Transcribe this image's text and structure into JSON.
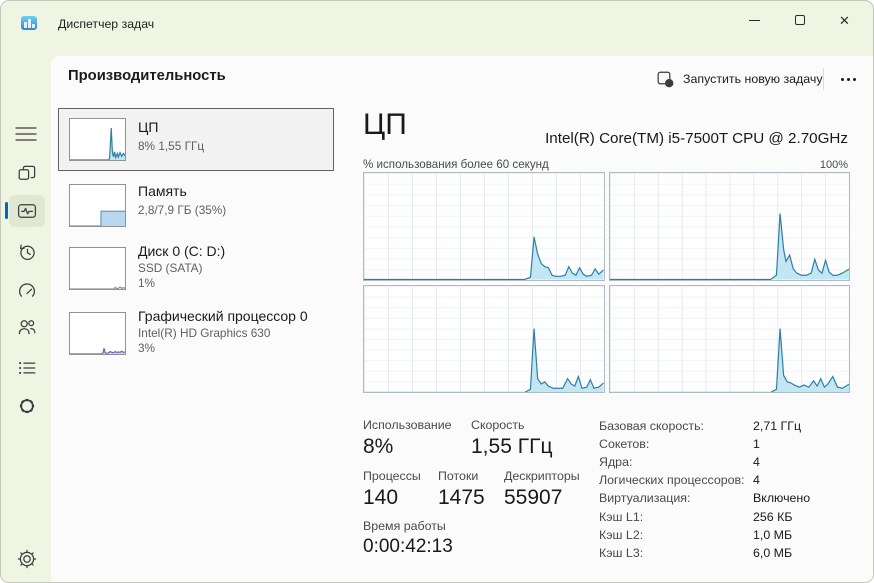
{
  "window": {
    "title": "Диспетчер задач",
    "icons": {
      "app": "task-manager-logo",
      "minimize": "minimize",
      "maximize": "maximize",
      "close": "✕"
    }
  },
  "header": {
    "title": "Производительность",
    "run_task_label": "Запустить новую задачу",
    "run_task_icon": "window-plus-icon",
    "more_icon": "ellipsis-icon"
  },
  "sidebar": {
    "items": [
      {
        "name": "processes",
        "icon": "tiles-icon"
      },
      {
        "name": "performance",
        "icon": "pulse-icon",
        "selected": true
      },
      {
        "name": "app-history",
        "icon": "history-clock-icon"
      },
      {
        "name": "startup-apps",
        "icon": "gauge-icon"
      },
      {
        "name": "users",
        "icon": "people-icon"
      },
      {
        "name": "details",
        "icon": "list-icon"
      },
      {
        "name": "services",
        "icon": "cog-flower-icon"
      }
    ],
    "menu_icon": "hamburger-icon",
    "settings_icon": "gear-icon",
    "accent_color": "#0067c0"
  },
  "perf_list": [
    {
      "title": "ЦП",
      "subtitle": "8% 1,55 ГГц",
      "selected": true
    },
    {
      "title": "Память",
      "subtitle": "2,8/7,9 ГБ (35%)"
    },
    {
      "title": "Диск 0 (C: D:)",
      "subtitle": "SSD (SATA)",
      "percent": "1%"
    },
    {
      "title": "Графический процессор 0",
      "subtitle": "Intel(R) HD Graphics 630",
      "percent": "3%"
    }
  ],
  "main": {
    "title": "ЦП",
    "cpu_name": "Intel(R) Core(TM) i5-7500T CPU @ 2.70GHz",
    "chart_caption": "% использования более 60 секунд",
    "chart_scale_max": "100%",
    "stats": {
      "usage_label": "Использование",
      "usage_value": "8%",
      "speed_label": "Скорость",
      "speed_value": "1,55 ГГц",
      "processes_label": "Процессы",
      "processes_value": "140",
      "threads_label": "Потоки",
      "threads_value": "1475",
      "handles_label": "Дескрипторы",
      "handles_value": "55907",
      "uptime_label": "Время работы",
      "uptime_value": "0:00:42:13"
    },
    "specs": [
      {
        "label": "Базовая скорость:",
        "value": "2,71 ГГц"
      },
      {
        "label": "Сокетов:",
        "value": "1"
      },
      {
        "label": "Ядра:",
        "value": "4"
      },
      {
        "label": "Логических процессоров:",
        "value": "4"
      },
      {
        "label": "Виртуализация:",
        "value": "Включено"
      },
      {
        "label": "Кэш L1:",
        "value": "256 КБ"
      },
      {
        "label": "Кэш L2:",
        "value": "1,0 МБ"
      },
      {
        "label": "Кэш L3:",
        "value": "6,0 МБ"
      }
    ]
  },
  "colors": {
    "chrome_bg": "#f0f5e3",
    "panel_bg": "#fbfbfb",
    "accent": "#0067c0",
    "cpu_chart_stroke": "#2f7ea2",
    "cpu_chart_fill": "#c3e6f5",
    "memory_fill": "#b9d7f0",
    "gpu_stroke": "#7d5fb2",
    "chart_border": "#aebcc2"
  },
  "chart_data": {
    "type": "area",
    "title": "% использования более 60 секунд",
    "x_range": "60 секунд",
    "y_range": [
      0,
      100
    ],
    "grid": true,
    "cores": [
      {
        "name": "логический процессор 1",
        "stroke": "#2f7ea2",
        "fill": "#c3e6f5",
        "points": [
          [
            0,
            0
          ],
          [
            67,
            0
          ],
          [
            69.5,
            2
          ],
          [
            71,
            40
          ],
          [
            72.5,
            24
          ],
          [
            74,
            15
          ],
          [
            75.5,
            12
          ],
          [
            77,
            11
          ],
          [
            78.5,
            4
          ],
          [
            80,
            3
          ],
          [
            82,
            3
          ],
          [
            84,
            4
          ],
          [
            85.5,
            12
          ],
          [
            87,
            6
          ],
          [
            88.5,
            4
          ],
          [
            90,
            11
          ],
          [
            91.5,
            5
          ],
          [
            93,
            3
          ],
          [
            95,
            4
          ],
          [
            96.5,
            10
          ],
          [
            98,
            5
          ],
          [
            100,
            9
          ]
        ]
      },
      {
        "name": "логический процессор 2",
        "stroke": "#2f7ea2",
        "fill": "#c3e6f5",
        "points": [
          [
            0,
            0
          ],
          [
            67,
            0
          ],
          [
            69.5,
            4
          ],
          [
            71,
            62
          ],
          [
            72.5,
            28
          ],
          [
            73.5,
            17
          ],
          [
            75,
            23
          ],
          [
            76.5,
            10
          ],
          [
            78,
            6
          ],
          [
            80,
            4
          ],
          [
            82,
            4
          ],
          [
            84,
            6
          ],
          [
            85.5,
            19
          ],
          [
            87,
            9
          ],
          [
            88.5,
            6
          ],
          [
            90,
            18
          ],
          [
            91.5,
            7
          ],
          [
            93,
            4
          ],
          [
            95,
            4
          ],
          [
            97,
            6
          ],
          [
            100,
            10
          ]
        ]
      },
      {
        "name": "логический процессор 3",
        "stroke": "#2f7ea2",
        "fill": "#c3e6f5",
        "points": [
          [
            0,
            0
          ],
          [
            67,
            0
          ],
          [
            69.5,
            3
          ],
          [
            71,
            60
          ],
          [
            72.5,
            13
          ],
          [
            74,
            8
          ],
          [
            75.5,
            10
          ],
          [
            77,
            6
          ],
          [
            79,
            4
          ],
          [
            81,
            4
          ],
          [
            83,
            4
          ],
          [
            85,
            13
          ],
          [
            86.5,
            8
          ],
          [
            88,
            6
          ],
          [
            89.5,
            15
          ],
          [
            91,
            4
          ],
          [
            93,
            5
          ],
          [
            94.5,
            12
          ],
          [
            96,
            4
          ],
          [
            98,
            5
          ],
          [
            100,
            9
          ]
        ]
      },
      {
        "name": "логический процессор 4",
        "stroke": "#2f7ea2",
        "fill": "#c3e6f5",
        "points": [
          [
            0,
            0
          ],
          [
            67,
            0
          ],
          [
            69.5,
            3
          ],
          [
            71,
            60
          ],
          [
            72.5,
            16
          ],
          [
            74,
            10
          ],
          [
            75.5,
            9
          ],
          [
            77,
            7
          ],
          [
            79,
            5
          ],
          [
            81,
            7
          ],
          [
            83,
            5
          ],
          [
            85,
            11
          ],
          [
            86.5,
            6
          ],
          [
            88,
            13
          ],
          [
            89.5,
            5
          ],
          [
            91,
            8
          ],
          [
            93,
            15
          ],
          [
            95,
            5
          ],
          [
            97,
            4
          ],
          [
            100,
            8
          ]
        ]
      }
    ],
    "mini": {
      "cpu": {
        "name": "ЦП мини-график",
        "stroke": "#2f7ea2",
        "fill": "#c3e6f5",
        "points": [
          [
            0,
            0
          ],
          [
            70,
            0
          ],
          [
            72,
            4
          ],
          [
            75,
            78
          ],
          [
            77,
            20
          ],
          [
            79,
            8
          ],
          [
            81,
            20
          ],
          [
            83,
            6
          ],
          [
            86,
            16
          ],
          [
            88,
            7
          ],
          [
            91,
            18
          ],
          [
            94,
            9
          ],
          [
            97,
            16
          ],
          [
            100,
            10
          ]
        ]
      },
      "memory": {
        "name": "Память мини-график",
        "stroke": "#6b9bc6",
        "fill": "#b9d7f0",
        "points": [
          [
            0,
            0
          ],
          [
            56,
            0
          ],
          [
            56.5,
            36
          ],
          [
            100,
            36
          ]
        ]
      },
      "disk": {
        "name": "Диск мини-график",
        "stroke": "#8a9499",
        "fill": "#dde5e8",
        "points": [
          [
            0,
            0
          ],
          [
            80,
            0
          ],
          [
            82,
            4
          ],
          [
            85,
            1
          ],
          [
            88,
            2
          ],
          [
            91,
            5
          ],
          [
            94,
            2
          ],
          [
            97,
            3
          ],
          [
            100,
            2
          ]
        ]
      },
      "gpu": {
        "name": "ГП мини-график",
        "stroke": "#7d5fb2",
        "fill": "#d7cdeb",
        "points": [
          [
            0,
            0
          ],
          [
            58,
            0
          ],
          [
            60,
            3
          ],
          [
            62,
            14
          ],
          [
            64,
            3
          ],
          [
            67,
            2
          ],
          [
            70,
            3
          ],
          [
            73,
            6
          ],
          [
            76,
            4
          ],
          [
            79,
            3
          ],
          [
            82,
            6
          ],
          [
            85,
            4
          ],
          [
            88,
            5
          ],
          [
            91,
            4
          ],
          [
            94,
            7
          ],
          [
            97,
            4
          ],
          [
            100,
            5
          ]
        ]
      }
    }
  }
}
